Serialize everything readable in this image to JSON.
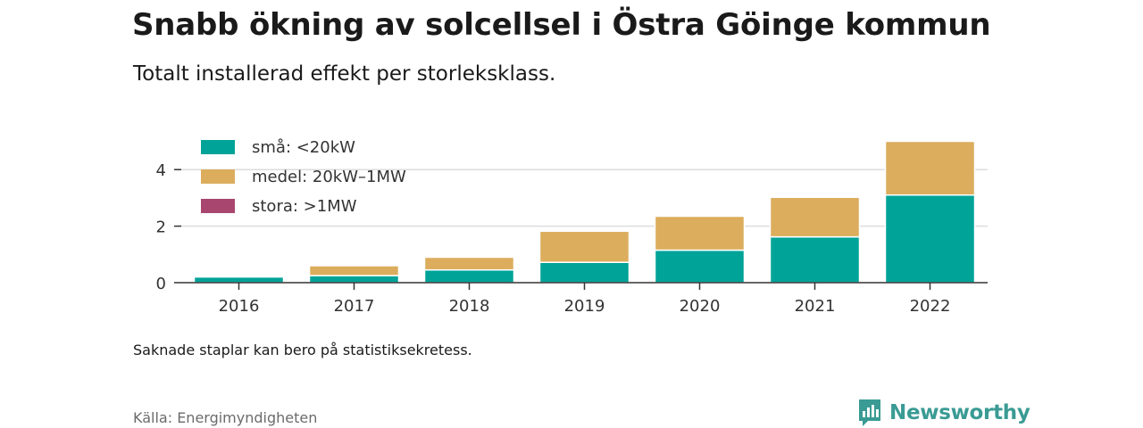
{
  "header": {
    "title": "Snabb ökning av solcellsel i Östra Göinge kommun",
    "subtitle": "Totalt installerad effekt per storleksklass."
  },
  "footer": {
    "note": "Saknade staplar kan bero på statistiksekretess.",
    "source": "Källa: Energimyndigheten",
    "brand": "Newsworthy",
    "brand_icon": "newsworthy-logo-icon",
    "brand_color": "#3a9b94"
  },
  "chart_data": {
    "type": "bar",
    "stacked": true,
    "title": "Snabb ökning av solcellsel i Östra Göinge kommun",
    "subtitle": "Totalt installerad effekt per storleksklass.",
    "categories": [
      "2016",
      "2017",
      "2018",
      "2019",
      "2020",
      "2021",
      "2022"
    ],
    "series": [
      {
        "name": "små: <20kW",
        "color": "#00a398",
        "values": [
          0.2,
          0.25,
          0.45,
          0.72,
          1.15,
          1.62,
          3.1
        ]
      },
      {
        "name": "medel: 20kW–1MW",
        "color": "#dbad5d",
        "values": [
          0,
          0.35,
          0.45,
          1.1,
          1.2,
          1.4,
          1.9
        ]
      },
      {
        "name": "stora: >1MW",
        "color": "#a8466f",
        "values": [
          0,
          0,
          0,
          0,
          0,
          0,
          0
        ]
      }
    ],
    "yticks": [
      0,
      2,
      4
    ],
    "ylim": [
      0,
      5.1
    ],
    "xlabel": "",
    "ylabel": "",
    "grid": true,
    "legend": "top-left"
  }
}
